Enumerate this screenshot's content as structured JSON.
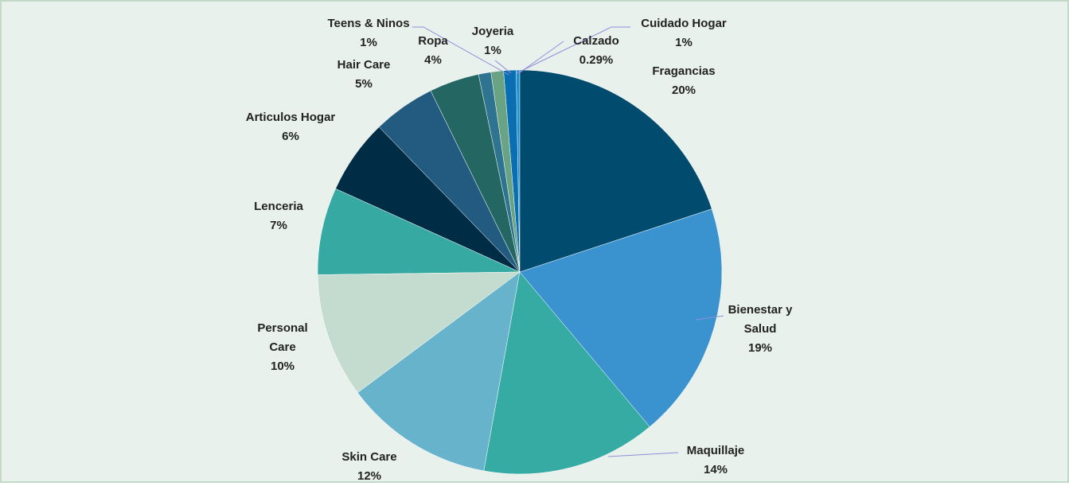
{
  "chart_data": {
    "type": "pie",
    "categories": [
      "Fragancias",
      "Bienestar y Salud",
      "Maquillaje",
      "Skin Care",
      "Personal Care",
      "Lenceria",
      "Articulos Hogar",
      "Hair Care",
      "Ropa",
      "Teens & Ninos",
      "Joyeria",
      "Cuidado Hogar",
      "Calzado"
    ],
    "values": [
      20,
      19,
      14,
      12,
      10,
      7,
      6,
      5,
      4,
      1,
      1,
      1,
      0.29
    ],
    "value_labels": [
      "20%",
      "19%",
      "14%",
      "12%",
      "10%",
      "7%",
      "6%",
      "5%",
      "4%",
      "1%",
      "1%",
      "1%",
      "0.29%"
    ],
    "colors": [
      "#004b6e",
      "#3a93cf",
      "#36aba3",
      "#67b3cc",
      "#c4dccf",
      "#35a9a2",
      "#002d45",
      "#225a80",
      "#236662",
      "#2e7490",
      "#6aa383",
      "#0a6fb0",
      "#1a8fd6"
    ]
  }
}
